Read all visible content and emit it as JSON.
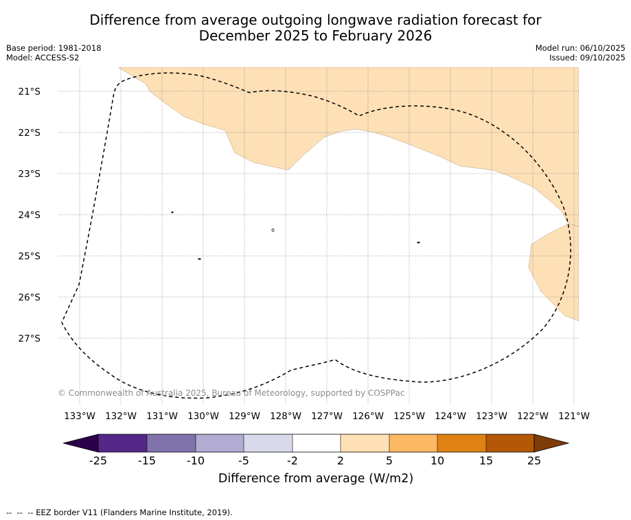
{
  "title": {
    "line1": "Difference from average outgoing longwave radiation forecast for",
    "line2": "December 2025 to February 2026"
  },
  "meta": {
    "base_period": "Base period: 1981-2018",
    "model": "Model: ACCESS-S2",
    "model_run": "Model run: 06/10/2025",
    "issued": "Issued: 09/10/2025"
  },
  "map": {
    "latitude_labels": [
      "21°S",
      "22°S",
      "23°S",
      "24°S",
      "25°S",
      "26°S",
      "27°S"
    ],
    "longitude_labels": [
      "133°W",
      "132°W",
      "131°W",
      "130°W",
      "129°W",
      "128°W",
      "127°W",
      "126°W",
      "125°W",
      "124°W",
      "123°W",
      "122°W",
      "121°W"
    ],
    "copyright": "© Commonwealth of Australia 2025, Bureau of Meteorology, supported by COSPPac",
    "colors": {
      "anomaly_2_to_5": "#fde0b6",
      "eez_border": "#000000",
      "grid": "#888888"
    }
  },
  "colorbar": {
    "title": "Difference from average (W/m2)",
    "tick_labels": [
      "-25",
      "-15",
      "-10",
      "-5",
      "-2",
      "2",
      "5",
      "10",
      "15",
      "25"
    ],
    "colors": [
      "#2d004b",
      "#542788",
      "#8073ac",
      "#b2abd2",
      "#d8daeb",
      "#ffffff",
      "#fee0b6",
      "#fdb863",
      "#e08214",
      "#b35806",
      "#7f3b08"
    ]
  },
  "footer": {
    "legend_symbol": "--  --  --",
    "legend_text": "EEZ border V11 (Flanders Marine Institute, 2019)."
  }
}
